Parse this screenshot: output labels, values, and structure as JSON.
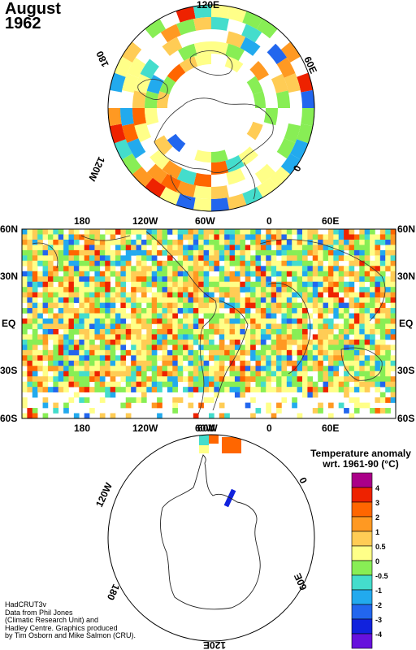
{
  "header": {
    "month": "August",
    "year": "1962"
  },
  "north_polar": {
    "lon_labels": [
      "120E",
      "60E",
      "0",
      "120W",
      "180"
    ]
  },
  "tropics_map": {
    "top_lon_labels": [
      "180",
      "120W",
      "60W",
      "0",
      "60E"
    ],
    "bottom_lon_labels": [
      "180",
      "120W",
      "60W",
      "0",
      "60E"
    ],
    "lat_labels": [
      "60N",
      "30N",
      "EQ",
      "30S",
      "60S"
    ]
  },
  "south_polar": {
    "lon_labels": [
      "60W",
      "0",
      "60E",
      "120E",
      "180",
      "120W"
    ]
  },
  "legend": {
    "title_line1": "Temperature anomaly",
    "title_line2": "wrt. 1961-90  (°C)",
    "levels": [
      "4",
      "3",
      "2",
      "1",
      "0.5",
      "0",
      "-0.5",
      "-1",
      "-2",
      "-3",
      "-4"
    ],
    "colors": [
      "#aa0088",
      "#ee2200",
      "#ff6600",
      "#ff9922",
      "#ffcc55",
      "#ffff88",
      "#88ee55",
      "#44ddcc",
      "#22aaee",
      "#2266ee",
      "#1122dd",
      "#6611dd"
    ]
  },
  "credits": [
    "HadCRUT3v",
    "Data from Phil Jones",
    "(Climatic Research Unit) and",
    "Hadley Centre.  Graphics produced",
    "by Tim Osborn and Mike Salmon (CRU)."
  ]
}
